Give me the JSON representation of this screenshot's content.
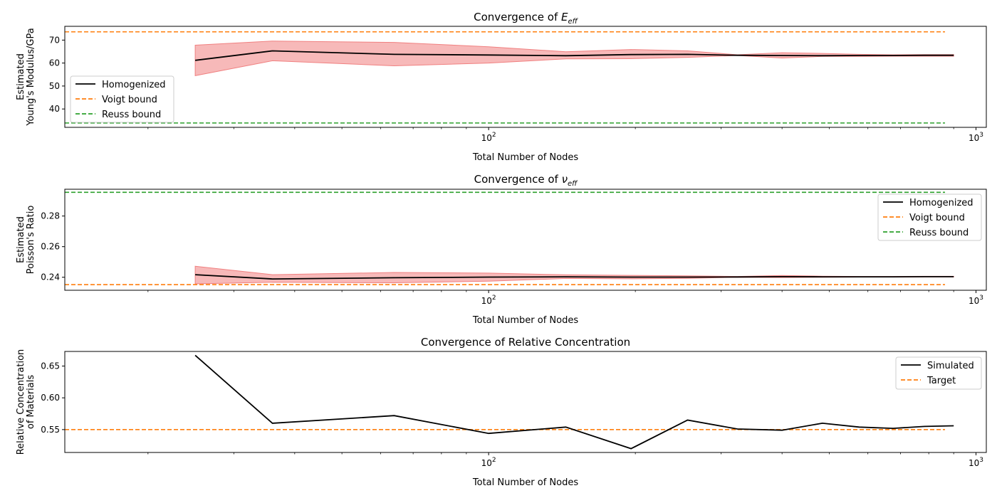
{
  "colors": {
    "homogenized": "#000000",
    "voigt": "#ff7f0e",
    "reuss": "#2ca02c",
    "band": "#f08080"
  },
  "chart_data": [
    {
      "type": "line",
      "title_main": "Convergence of ",
      "title_sym": "E",
      "title_sub": "eff",
      "xlabel": "Total Number of Nodes",
      "ylabel": [
        "Estimated",
        "Young's Modulus/GPa"
      ],
      "xscale": "log",
      "xlim": [
        13.5,
        1050
      ],
      "ylim": [
        32,
        76
      ],
      "yticks": [
        40,
        50,
        60,
        70
      ],
      "xticks": [
        {
          "value": 100,
          "base": "10",
          "exp": "2"
        },
        {
          "value": 1000,
          "base": "10",
          "exp": "3"
        }
      ],
      "legend_position": "lower-left",
      "series": [
        {
          "name": "Homogenized",
          "style": "solid",
          "color": "#000000",
          "x": [
            25,
            36,
            64,
            100,
            144,
            196,
            256,
            324,
            400,
            484,
            576,
            676,
            784,
            900
          ],
          "y": [
            61.2,
            65.3,
            63.8,
            63.5,
            63.2,
            63.7,
            63.8,
            63.4,
            63.3,
            63.2,
            63.3,
            63.3,
            63.4,
            63.4
          ],
          "lower": [
            54.5,
            61.0,
            58.8,
            60.0,
            61.8,
            61.9,
            62.5,
            63.3,
            62.2,
            62.9,
            62.9,
            63.0,
            63.0,
            63.0
          ],
          "upper": [
            67.8,
            69.6,
            69.0,
            67.1,
            64.9,
            65.9,
            65.3,
            63.6,
            64.5,
            64.2,
            63.8,
            63.6,
            63.7,
            63.7
          ]
        },
        {
          "name": "Voigt bound",
          "style": "dashed",
          "color": "#ff7f0e",
          "constant": 73.6
        },
        {
          "name": "Reuss bound",
          "style": "dashed",
          "color": "#2ca02c",
          "constant": 33.9
        }
      ]
    },
    {
      "type": "line",
      "title_main": "Convergence of ",
      "title_sym": "ν",
      "title_sub": "eff",
      "xlabel": "Total Number of Nodes",
      "ylabel": [
        "Estimated",
        "Poisson's Ratio"
      ],
      "xscale": "log",
      "xlim": [
        13.5,
        1050
      ],
      "ylim": [
        0.2315,
        0.2975
      ],
      "yticks": [
        0.24,
        0.26,
        0.28
      ],
      "xticks": [
        {
          "value": 100,
          "base": "10",
          "exp": "2"
        },
        {
          "value": 1000,
          "base": "10",
          "exp": "3"
        }
      ],
      "legend_position": "upper-right",
      "series": [
        {
          "name": "Homogenized",
          "style": "solid",
          "color": "#000000",
          "x": [
            25,
            36,
            64,
            100,
            144,
            196,
            256,
            324,
            400,
            484,
            576,
            676,
            784,
            900
          ],
          "y": [
            0.2417,
            0.2389,
            0.2397,
            0.2401,
            0.2403,
            0.2401,
            0.2401,
            0.2402,
            0.2404,
            0.2403,
            0.2403,
            0.2403,
            0.2404,
            0.2404
          ],
          "lower": [
            0.2357,
            0.2367,
            0.2364,
            0.2374,
            0.2392,
            0.239,
            0.2393,
            0.24,
            0.2398,
            0.24,
            0.2401,
            0.2401,
            0.2402,
            0.2402
          ],
          "upper": [
            0.2472,
            0.2417,
            0.2431,
            0.2427,
            0.2416,
            0.2412,
            0.2409,
            0.2405,
            0.2411,
            0.2407,
            0.2405,
            0.2405,
            0.2406,
            0.2406
          ]
        },
        {
          "name": "Voigt bound",
          "style": "dashed",
          "color": "#ff7f0e",
          "constant": 0.2352
        },
        {
          "name": "Reuss bound",
          "style": "dashed",
          "color": "#2ca02c",
          "constant": 0.2955
        }
      ]
    },
    {
      "type": "line",
      "title_main": "Convergence of Relative Concentration",
      "title_sym": "",
      "title_sub": "",
      "xlabel": "Total Number of Nodes",
      "ylabel": [
        "Relative Concentration",
        "of Materials"
      ],
      "xscale": "log",
      "xlim": [
        13.5,
        1050
      ],
      "ylim": [
        0.514,
        0.673
      ],
      "yticks": [
        0.55,
        0.6,
        0.65
      ],
      "xticks": [
        {
          "value": 100,
          "base": "10",
          "exp": "2"
        },
        {
          "value": 1000,
          "base": "10",
          "exp": "3"
        }
      ],
      "legend_position": "upper-right",
      "series": [
        {
          "name": "Simulated",
          "style": "solid",
          "color": "#000000",
          "x": [
            25,
            36,
            64,
            100,
            144,
            196,
            256,
            324,
            400,
            484,
            576,
            676,
            784,
            900
          ],
          "y": [
            0.667,
            0.56,
            0.572,
            0.544,
            0.554,
            0.52,
            0.565,
            0.551,
            0.549,
            0.56,
            0.554,
            0.552,
            0.555,
            0.556
          ]
        },
        {
          "name": "Target",
          "style": "dashed",
          "color": "#ff7f0e",
          "constant": 0.55
        }
      ]
    }
  ]
}
